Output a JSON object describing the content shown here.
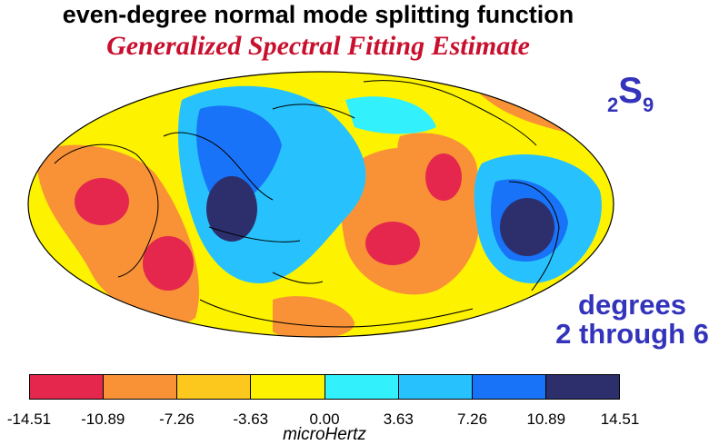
{
  "title": "even-degree normal mode splitting function",
  "subtitle": "Generalized Spectral Fitting Estimate",
  "mode": {
    "prefix": "2",
    "letter": "S",
    "subscript": "9"
  },
  "degrees": {
    "line1": "degrees",
    "line2": "2 through 6"
  },
  "colorbar": {
    "colors": [
      "#e5274d",
      "#f99237",
      "#fdc81e",
      "#fdf300",
      "#33f0fd",
      "#27c2fd",
      "#1873f8",
      "#2c2f6c"
    ],
    "ticks": [
      "-14.51",
      "-10.89",
      "-7.26",
      "-3.63",
      "0.00",
      "3.63",
      "7.26",
      "10.89",
      "14.51"
    ],
    "unit": "microHertz"
  }
}
